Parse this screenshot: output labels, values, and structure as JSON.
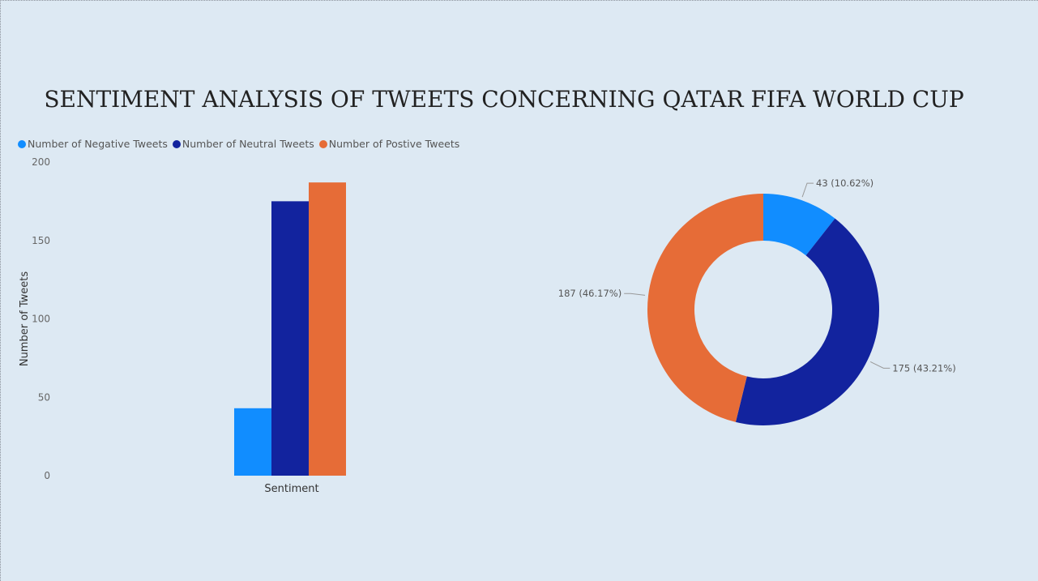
{
  "title": "SENTIMENT ANALYSIS OF TWEETS CONCERNING QATAR FIFA WORLD CUP",
  "legend": [
    {
      "label": "Number of Negative Tweets",
      "color": "#118dff"
    },
    {
      "label": "Number of Neutral Tweets",
      "color": "#12239e"
    },
    {
      "label": "Number of Postive Tweets",
      "color": "#e66c37"
    }
  ],
  "chart_data": [
    {
      "type": "bar",
      "categories": [
        "Sentiment"
      ],
      "series": [
        {
          "name": "Number of Negative Tweets",
          "values": [
            43
          ],
          "color": "#118dff"
        },
        {
          "name": "Number of Neutral Tweets",
          "values": [
            175
          ],
          "color": "#12239e"
        },
        {
          "name": "Number of Postive Tweets",
          "values": [
            187
          ],
          "color": "#e66c37"
        }
      ],
      "xlabel": "Sentiment",
      "ylabel": "Number of Tweets",
      "ylim": [
        0,
        200
      ],
      "yticks": [
        0,
        50,
        100,
        150,
        200
      ],
      "grid": false,
      "legend": "top-left"
    },
    {
      "type": "pie",
      "donut": true,
      "slices": [
        {
          "name": "Number of Negative Tweets",
          "value": 43,
          "label": "43 (10.62%)",
          "color": "#118dff"
        },
        {
          "name": "Number of Neutral Tweets",
          "value": 175,
          "label": "175 (43.21%)",
          "color": "#12239e"
        },
        {
          "name": "Number of Postive Tweets",
          "value": 187,
          "label": "187 (46.17%)",
          "color": "#e66c37"
        }
      ]
    }
  ]
}
